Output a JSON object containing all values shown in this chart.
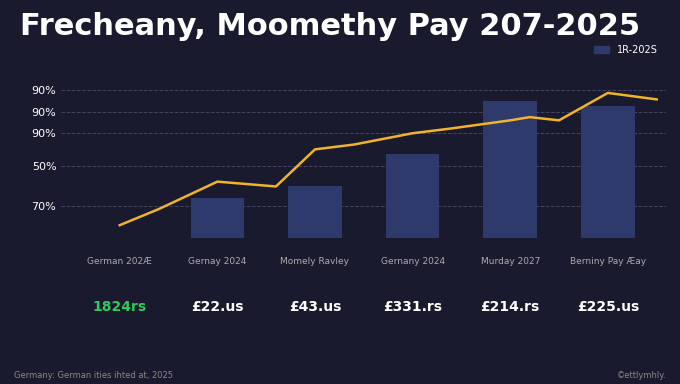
{
  "title": "Frecheany, Moomethy Pay 207-2025",
  "background_color": "#1a1a2e",
  "bar_color": "#2d3a6b",
  "line_color": "#f0b429",
  "legend_label": "1R-202S",
  "categories": [
    "German 202Æ",
    "Gernay 2024",
    "Momely Ravley",
    "Gernany 2024",
    "Murday 2027",
    "Berniny Pay Æay"
  ],
  "values_label": [
    "1824rs",
    "£22.us",
    "£43.us",
    "£331.rs",
    "£214.rs",
    "£225.us"
  ],
  "value_colors": [
    "#2bcc5e",
    "#ffffff",
    "#ffffff",
    "#ffffff",
    "#ffffff",
    "#ffffff"
  ],
  "category_label_color": "#aaaaaa",
  "bar_heights": [
    0,
    25,
    32,
    52,
    85,
    82
  ],
  "line_values": [
    8,
    18,
    35,
    32,
    55,
    58,
    65,
    68,
    73,
    75,
    73,
    90,
    86
  ],
  "line_x": [
    0,
    0.4,
    1,
    1.6,
    2,
    2.4,
    3,
    3.4,
    4,
    4.2,
    4.5,
    5,
    5.5
  ],
  "ytick_labels": [
    "70%",
    "50%",
    "90%",
    "90%",
    "90%"
  ],
  "ytick_positions": [
    20,
    45,
    65,
    78,
    92
  ],
  "footer_left": "Germany: German ities ihted at, 2025",
  "footer_right": "©ettlymhly.",
  "title_fontsize": 22,
  "bar_width": 0.55,
  "ylim": [
    0,
    100
  ],
  "xlim": [
    -0.6,
    5.6
  ]
}
